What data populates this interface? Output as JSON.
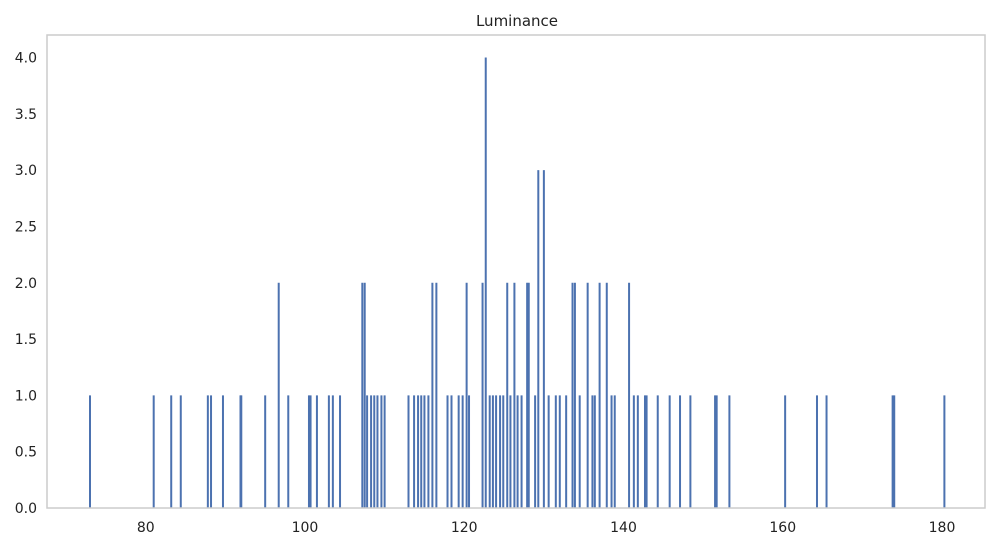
{
  "chart_data": {
    "type": "bar",
    "title": "Luminance",
    "xlabel": "",
    "ylabel": "",
    "xlim": [
      67.6,
      185.4
    ],
    "ylim": [
      0,
      4.2
    ],
    "x_ticks": [
      80,
      100,
      120,
      140,
      160,
      180
    ],
    "y_ticks": [
      0.0,
      0.5,
      1.0,
      1.5,
      2.0,
      2.5,
      3.0,
      3.5,
      4.0
    ],
    "grid": false,
    "bar_color": "#4c72b0",
    "series": [
      {
        "x": [
          73.0,
          81.0,
          83.2,
          84.4,
          87.8,
          88.2,
          89.7,
          91.9,
          92.0,
          95.0,
          96.7,
          97.9,
          100.5,
          100.7,
          101.5,
          103.0,
          103.5,
          104.4,
          107.2,
          107.5,
          107.8,
          108.3,
          108.7,
          109.1,
          109.6,
          110.0,
          113.0,
          113.7,
          114.2,
          114.6,
          115.0,
          115.5,
          116.0,
          116.5,
          117.9,
          118.4,
          119.3,
          119.8,
          120.3,
          120.6,
          122.3,
          122.7,
          123.2,
          123.6,
          124.0,
          124.5,
          124.9,
          125.4,
          125.8,
          126.3,
          126.7,
          127.2,
          127.9,
          128.1,
          128.9,
          129.3,
          130.0,
          130.6,
          131.5,
          132.0,
          132.8,
          133.6,
          133.9,
          134.5,
          135.5,
          136.1,
          136.4,
          137.0,
          137.9,
          138.5,
          138.9,
          140.7,
          141.3,
          141.8,
          142.7,
          142.9,
          144.3,
          145.8,
          147.1,
          148.4,
          151.5,
          151.7,
          153.3,
          160.3,
          164.3,
          165.5,
          173.8,
          174.0,
          180.3
        ],
        "values": [
          1,
          1,
          1,
          1,
          1,
          1,
          1,
          1,
          1,
          1,
          2,
          1,
          1,
          1,
          1,
          1,
          1,
          1,
          2,
          2,
          1,
          1,
          1,
          1,
          1,
          1,
          1,
          1,
          1,
          1,
          1,
          1,
          2,
          2,
          1,
          1,
          1,
          1,
          2,
          1,
          2,
          4,
          1,
          1,
          1,
          1,
          1,
          2,
          1,
          2,
          1,
          1,
          2,
          2,
          1,
          3,
          3,
          1,
          1,
          1,
          1,
          2,
          2,
          1,
          2,
          1,
          1,
          2,
          2,
          1,
          1,
          2,
          1,
          1,
          1,
          1,
          1,
          1,
          1,
          1,
          1,
          1,
          1,
          1,
          1,
          1,
          1,
          1,
          1
        ]
      }
    ]
  }
}
